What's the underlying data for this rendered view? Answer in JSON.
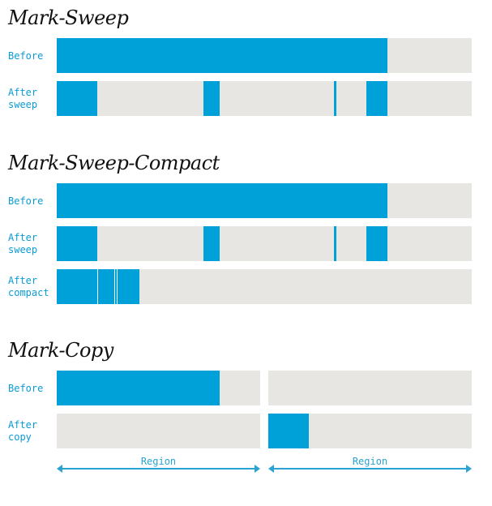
{
  "sections": {
    "mark_sweep": {
      "title": "Mark-Sweep",
      "before_label": "Before",
      "after_sweep_label": "After\nsweep"
    },
    "mark_sweep_compact": {
      "title": "Mark-Sweep-Compact",
      "before_label": "Before",
      "after_sweep_label": "After\nsweep",
      "after_compact_label": "After\ncompact"
    },
    "mark_copy": {
      "title": "Mark-Copy",
      "before_label": "Before",
      "after_copy_label": "After\ncopy",
      "region_label_1": "Region",
      "region_label_2": "Region"
    }
  },
  "colors": {
    "live_object": "#00a0d8",
    "free_space": "#e8e6e2",
    "label": "#0b9bd6"
  }
}
